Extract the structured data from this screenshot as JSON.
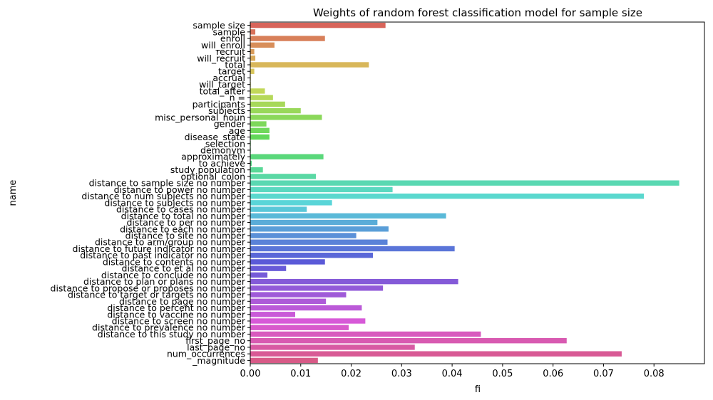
{
  "chart_data": {
    "type": "bar",
    "orientation": "horizontal",
    "title": "Weights of random forest classification model for sample size",
    "xlabel": "fi",
    "ylabel": "name",
    "xlim": [
      0,
      0.09
    ],
    "xticks": [
      "0.00",
      "0.01",
      "0.02",
      "0.03",
      "0.04",
      "0.05",
      "0.06",
      "0.07",
      "0.08"
    ],
    "grid": false,
    "legend": "none",
    "categories": [
      "sample size",
      "sample",
      "enroll",
      "will_enroll",
      "recruit",
      "will_recruit",
      "total",
      "target",
      "accrual",
      "will_target",
      "total_after",
      "_n =",
      "participants",
      "subjects",
      "misc_personal_noun",
      "gender",
      "age",
      "disease_state",
      "selection",
      "demonym",
      "approximately",
      "to achieve",
      "study population",
      "optional_colon",
      "distance to sample size no number",
      "distance to power no number",
      "distance to num subjects no number",
      "distance to subjects no number",
      "distance to cases no number",
      "distance to total no number",
      "distance to per no number",
      "distance to each no number",
      "distance to site no number",
      "distance to arm/group no number",
      "distance to future indicator no number",
      "distance to past indicator no number",
      "distance to contents no number",
      "distance to et al no number",
      "distance to conclude no number",
      "distance to plan or plans no number",
      "distance to propose or proposes no number",
      "distance to target or targets no number",
      "distance to page no number",
      "distance to percent no number",
      "distance to vaccine no number",
      "distance to screen no number",
      "distance to prevalence no number",
      "distance to this study no number",
      "first_page_no",
      "last_page_no",
      "num_occurrences",
      "_magnitude"
    ],
    "values": [
      0.0268,
      0.001,
      0.0148,
      0.0048,
      0.0008,
      0.001,
      0.0235,
      0.0008,
      0.0001,
      0.0001,
      0.0029,
      0.0045,
      0.0069,
      0.01,
      0.0142,
      0.0032,
      0.0038,
      0.0038,
      0.0001,
      0.0001,
      0.0145,
      0.0003,
      0.0025,
      0.013,
      0.085,
      0.0282,
      0.078,
      0.0162,
      0.0112,
      0.0388,
      0.0252,
      0.0274,
      0.021,
      0.0272,
      0.0405,
      0.0243,
      0.0148,
      0.0071,
      0.0034,
      0.0412,
      0.0263,
      0.019,
      0.015,
      0.0221,
      0.0089,
      0.0228,
      0.0195,
      0.0457,
      0.0627,
      0.0326,
      0.0736,
      0.0134
    ]
  }
}
